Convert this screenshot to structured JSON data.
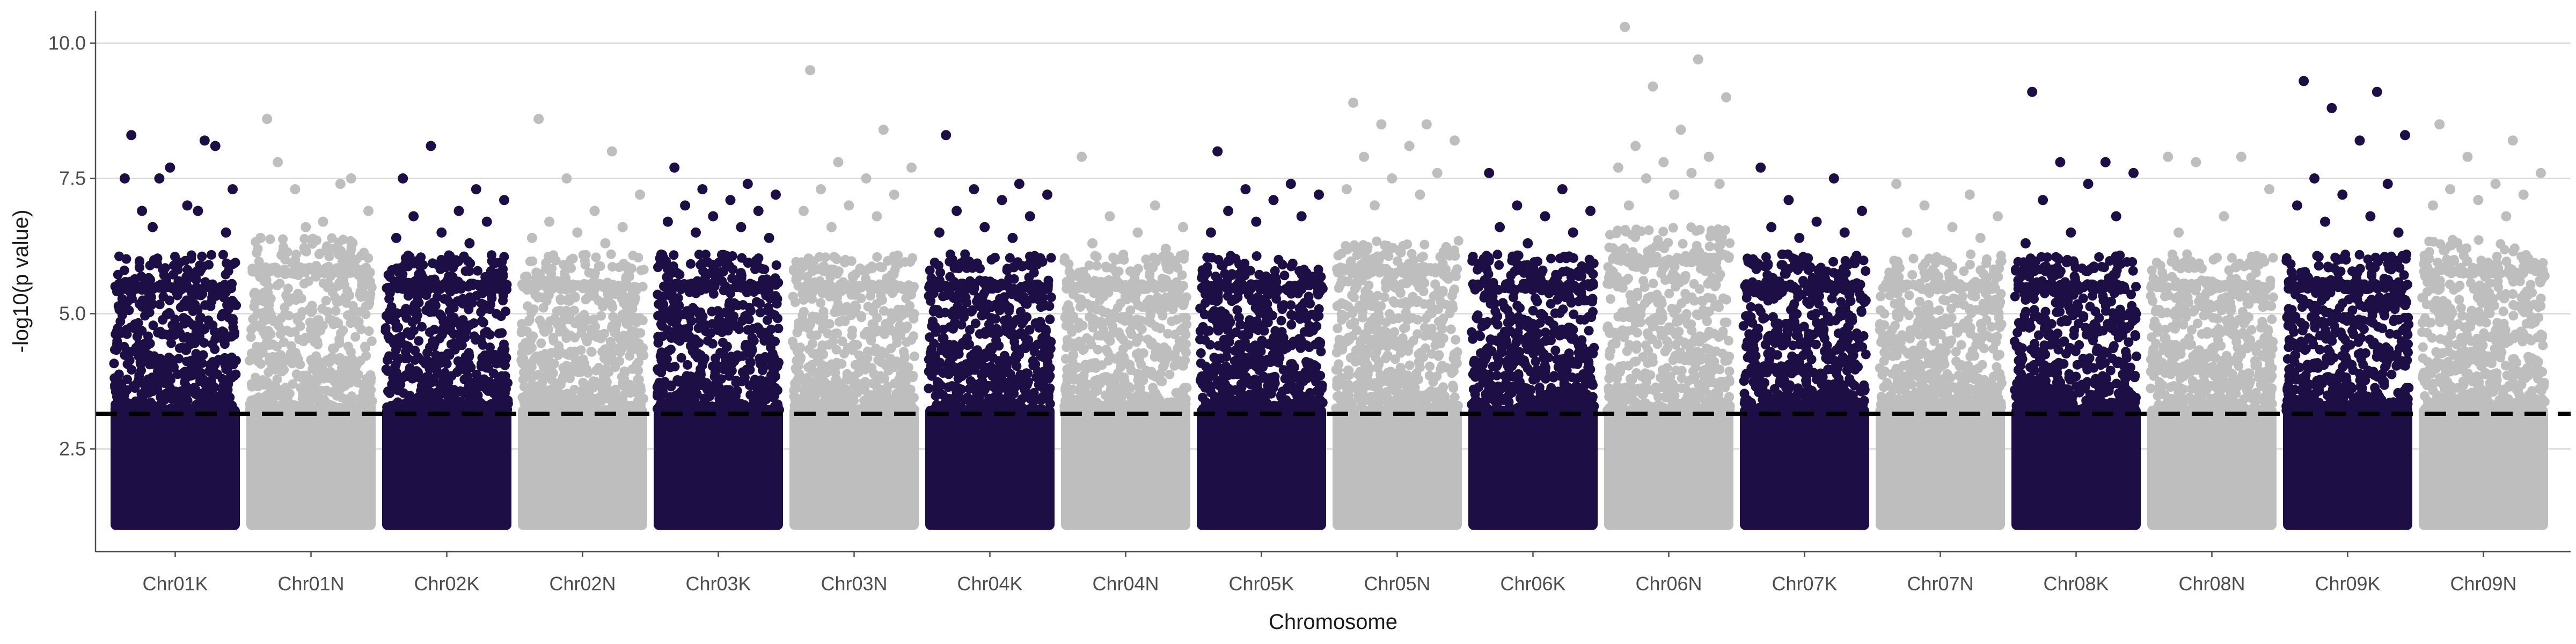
{
  "chart_data": {
    "type": "scatter",
    "title": "",
    "xlabel": "Chromosome",
    "ylabel": "-log10(p value)",
    "y_ticks": [
      2.5,
      5.0,
      7.5,
      10.0
    ],
    "y_tick_labels": [
      "2.5",
      "5.0",
      "7.5",
      "10.0"
    ],
    "ylim": [
      0.6,
      10.6
    ],
    "grid": "horizontal major",
    "legend": "none",
    "threshold": 3.15,
    "threshold_style": "dashed",
    "colors": {
      "K": "#1d0f45",
      "N": "#bebebe",
      "threshold": "#000000",
      "gridline": "#d9d9d9",
      "axis": "#4d4d4d"
    },
    "categories": [
      "Chr01K",
      "Chr01N",
      "Chr02K",
      "Chr02N",
      "Chr03K",
      "Chr03N",
      "Chr04K",
      "Chr04N",
      "Chr05K",
      "Chr05N",
      "Chr06K",
      "Chr06N",
      "Chr07K",
      "Chr07N",
      "Chr08K",
      "Chr08N",
      "Chr09K",
      "Chr09N"
    ],
    "series": [
      {
        "category": "Chr01K",
        "color_group": "K",
        "dense_top": 5.5,
        "peaks": [
          8.3,
          8.2,
          7.5,
          7.3,
          7.0,
          6.9,
          8.1,
          7.7,
          7.5,
          6.9,
          6.6,
          6.5
        ]
      },
      {
        "category": "Chr01N",
        "color_group": "N",
        "dense_top": 5.8,
        "peaks": [
          8.6,
          7.4,
          7.3,
          6.9,
          6.7,
          7.8,
          7.5,
          6.6,
          6.4,
          6.2
        ]
      },
      {
        "category": "Chr02K",
        "color_group": "K",
        "dense_top": 5.5,
        "peaks": [
          7.5,
          7.3,
          8.1,
          7.1,
          6.9,
          6.8,
          6.7,
          6.5,
          6.4,
          6.3
        ]
      },
      {
        "category": "Chr02N",
        "color_group": "N",
        "dense_top": 5.5,
        "peaks": [
          8.6,
          8.0,
          7.5,
          7.2,
          6.9,
          6.7,
          6.6,
          6.5,
          6.4,
          6.3
        ]
      },
      {
        "category": "Chr03K",
        "color_group": "K",
        "dense_top": 5.5,
        "peaks": [
          7.7,
          7.4,
          7.3,
          7.2,
          7.1,
          7.0,
          6.9,
          6.8,
          6.7,
          6.6,
          6.5,
          6.4
        ]
      },
      {
        "category": "Chr03N",
        "color_group": "N",
        "dense_top": 5.5,
        "peaks": [
          9.5,
          8.4,
          7.8,
          7.7,
          7.5,
          7.3,
          7.2,
          7.0,
          6.9,
          6.8,
          6.6
        ]
      },
      {
        "category": "Chr04K",
        "color_group": "K",
        "dense_top": 5.5,
        "peaks": [
          8.3,
          7.4,
          7.3,
          7.2,
          7.1,
          6.9,
          6.8,
          6.6,
          6.5,
          6.4
        ]
      },
      {
        "category": "Chr04N",
        "color_group": "N",
        "dense_top": 5.5,
        "peaks": [
          7.9,
          7.0,
          6.8,
          6.6,
          6.5,
          6.3,
          6.2
        ]
      },
      {
        "category": "Chr05K",
        "color_group": "K",
        "dense_top": 5.5,
        "peaks": [
          8.0,
          7.4,
          7.3,
          7.2,
          7.1,
          6.9,
          6.8,
          6.7,
          6.5
        ]
      },
      {
        "category": "Chr05N",
        "color_group": "N",
        "dense_top": 5.8,
        "peaks": [
          8.9,
          8.5,
          8.5,
          8.2,
          8.1,
          7.9,
          7.6,
          7.5,
          7.3,
          7.2,
          7.0
        ]
      },
      {
        "category": "Chr06K",
        "color_group": "K",
        "dense_top": 5.5,
        "peaks": [
          7.6,
          7.3,
          7.0,
          6.9,
          6.8,
          6.6,
          6.5,
          6.3
        ]
      },
      {
        "category": "Chr06N",
        "color_group": "N",
        "dense_top": 6.0,
        "peaks": [
          10.3,
          9.7,
          9.2,
          9.0,
          8.4,
          8.1,
          7.9,
          7.8,
          7.7,
          7.6,
          7.5,
          7.4,
          7.2,
          7.0
        ]
      },
      {
        "category": "Chr07K",
        "color_group": "K",
        "dense_top": 5.5,
        "peaks": [
          7.7,
          7.5,
          7.1,
          6.9,
          6.7,
          6.6,
          6.5,
          6.4
        ]
      },
      {
        "category": "Chr07N",
        "color_group": "N",
        "dense_top": 5.5,
        "peaks": [
          7.4,
          7.2,
          7.0,
          6.8,
          6.6,
          6.5,
          6.4
        ]
      },
      {
        "category": "Chr08K",
        "color_group": "K",
        "dense_top": 5.5,
        "peaks": [
          9.1,
          7.8,
          7.8,
          7.6,
          7.4,
          7.1,
          6.8,
          6.5,
          6.3
        ]
      },
      {
        "category": "Chr08N",
        "color_group": "N",
        "dense_top": 5.5,
        "peaks": [
          7.9,
          7.9,
          7.8,
          7.3,
          6.8,
          6.5
        ]
      },
      {
        "category": "Chr09K",
        "color_group": "K",
        "dense_top": 5.5,
        "peaks": [
          9.3,
          9.1,
          8.8,
          8.3,
          8.2,
          7.5,
          7.4,
          7.2,
          7.0,
          6.8,
          6.7,
          6.5
        ]
      },
      {
        "category": "Chr09N",
        "color_group": "N",
        "dense_top": 5.8,
        "peaks": [
          8.5,
          8.2,
          7.9,
          7.6,
          7.4,
          7.3,
          7.2,
          7.1,
          7.0,
          6.8
        ]
      }
    ]
  }
}
